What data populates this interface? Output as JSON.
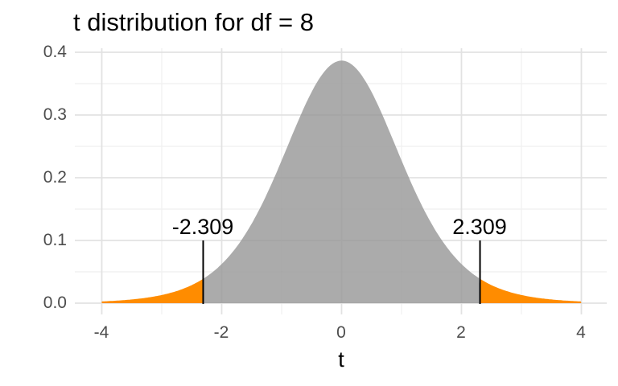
{
  "chart_data": {
    "type": "area",
    "title": "t distribution for df = 8",
    "distribution": "t",
    "df": 8,
    "peak_density": 0.3867,
    "x_range": [
      -4,
      4
    ],
    "xlabel": "t",
    "ylabel": "",
    "ylim": [
      0,
      0.4
    ],
    "x_ticks": [
      -4,
      -2,
      0,
      2,
      4
    ],
    "x_tick_labels": [
      "-4",
      "-2",
      "0",
      "2",
      "4"
    ],
    "x_minor_ticks": [
      -3,
      -1,
      1,
      3
    ],
    "y_ticks": [
      0,
      0.1,
      0.2,
      0.3,
      0.4
    ],
    "y_tick_labels": [
      "0.0",
      "0.1",
      "0.2",
      "0.3",
      "0.4"
    ],
    "y_minor_ticks": [
      0.05,
      0.15,
      0.25,
      0.35
    ],
    "grid": "major+minor",
    "legend": "none",
    "critical_values": [
      -2.309,
      2.309
    ],
    "critical_value_labels": [
      "-2.309",
      "2.309"
    ],
    "critical_density": 0.0389,
    "annotation_line_top": 0.1,
    "regions": [
      {
        "name": "center-area",
        "from": -2.309,
        "to": 2.309,
        "fill": "#999999",
        "opacity": 0.82
      },
      {
        "name": "left-tail",
        "from": -4,
        "to": -2.309,
        "fill": "#FF8C00",
        "opacity": 1
      },
      {
        "name": "right-tail",
        "from": 2.309,
        "to": 4,
        "fill": "#FF8C00",
        "opacity": 1
      }
    ],
    "sample_points": {
      "t": [
        -4,
        -3.5,
        -3,
        -2.5,
        -2.309,
        -2,
        -1.5,
        -1,
        -0.5,
        0,
        0.5,
        1,
        1.5,
        2,
        2.309,
        2.5,
        3,
        3.5,
        4
      ],
      "density": [
        0.0028,
        0.0059,
        0.013,
        0.0288,
        0.0389,
        0.0624,
        0.1268,
        0.2276,
        0.3367,
        0.3867,
        0.3367,
        0.2276,
        0.1268,
        0.0624,
        0.0389,
        0.0288,
        0.013,
        0.0059,
        0.0028
      ]
    },
    "colors": {
      "center_fill": "#999999",
      "tail_fill": "#FF8C00",
      "critical_line": "#000000",
      "grid_major": "#E2E2E2",
      "grid_minor": "#EFEFEF",
      "tick_text": "#4D4D4D",
      "title_text": "#000000",
      "background": "#FFFFFF"
    }
  }
}
